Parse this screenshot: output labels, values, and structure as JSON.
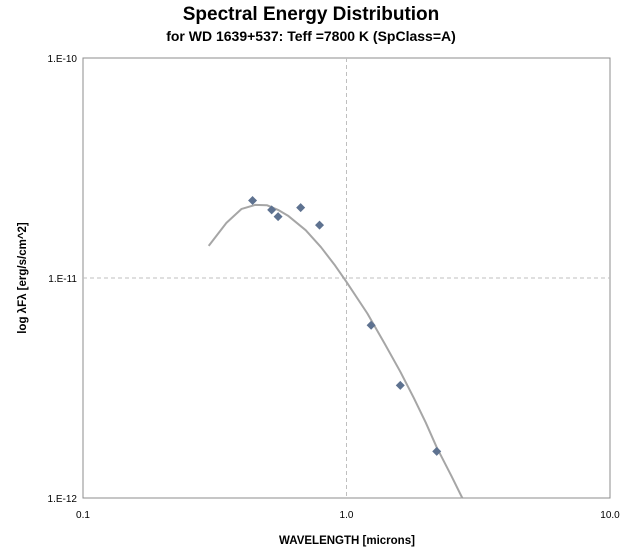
{
  "chart_data": {
    "type": "scatter",
    "title": "Spectral Energy Distribution",
    "subtitle": "for WD 1639+537:  Teff =7800 K (SpClass=A)",
    "xlabel": "WAVELENGTH  [microns]",
    "ylabel": "log λFλ  [erg/s/cm^2]",
    "x_scale": "log",
    "y_scale": "log",
    "xlim": [
      0.1,
      10.0
    ],
    "ylim": [
      1e-12,
      1e-10
    ],
    "x_ticks": [
      {
        "value": 0.1,
        "label": "0.1"
      },
      {
        "value": 1.0,
        "label": "1.0"
      },
      {
        "value": 10.0,
        "label": "10.0"
      }
    ],
    "y_ticks": [
      {
        "value": 1e-10,
        "label": "1.E-10"
      },
      {
        "value": 1e-11,
        "label": "1.E-11"
      },
      {
        "value": 1e-12,
        "label": "1.E-12"
      }
    ],
    "grid": true,
    "series": [
      {
        "kind": "line",
        "color": "#a6a6a6",
        "x": [
          0.3,
          0.35,
          0.4,
          0.45,
          0.5,
          0.55,
          0.6,
          0.7,
          0.8,
          0.9,
          1.0,
          1.2,
          1.4,
          1.6,
          1.8,
          2.0,
          2.2,
          2.5,
          2.75
        ],
        "y": [
          1.4e-11,
          1.78e-11,
          2.06e-11,
          2.15e-11,
          2.14e-11,
          2.04e-11,
          1.92e-11,
          1.65e-11,
          1.38e-11,
          1.15e-11,
          9.6e-12,
          6.9e-12,
          5e-12,
          3.75e-12,
          2.85e-12,
          2.2e-12,
          1.7e-12,
          1.26e-12,
          1e-12
        ]
      },
      {
        "kind": "scatter",
        "marker": "diamond",
        "color": "#5e7290",
        "x": [
          0.44,
          0.52,
          0.55,
          0.67,
          0.79,
          1.24,
          1.6,
          2.2
        ],
        "y": [
          2.25e-11,
          2.04e-11,
          1.9e-11,
          2.09e-11,
          1.74e-11,
          6.1e-12,
          3.25e-12,
          1.63e-12
        ]
      }
    ]
  }
}
